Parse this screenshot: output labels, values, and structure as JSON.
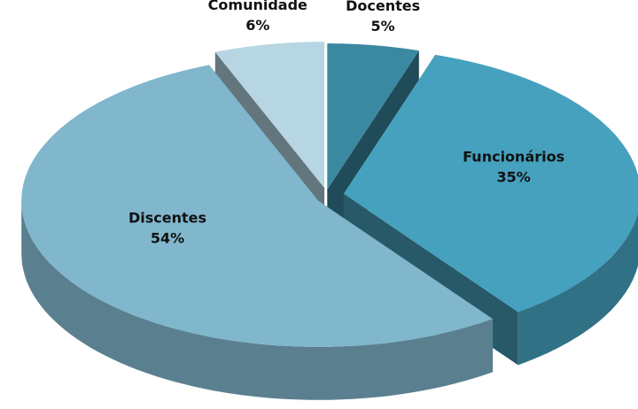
{
  "chart_data": {
    "type": "pie",
    "categories": [
      "Docentes",
      "Funcionários",
      "Discentes",
      "Comunidade"
    ],
    "values": [
      5,
      35,
      54,
      6
    ],
    "value_labels": [
      "5%",
      "35%",
      "54%",
      "6%"
    ],
    "colors": [
      "#3b88a1",
      "#46a1be",
      "#80b7cd",
      "#b6d6e3"
    ]
  }
}
